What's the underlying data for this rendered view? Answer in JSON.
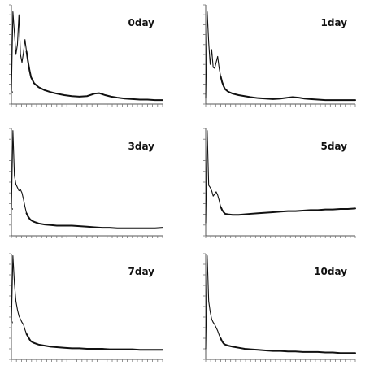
{
  "chart_data": [
    {
      "type": "line",
      "title": "0day",
      "xlabel": "",
      "ylabel": "",
      "xlim": [
        0,
        100
      ],
      "ylim": [
        0,
        100
      ],
      "series": [
        {
          "x": [
            0,
            1,
            2,
            3,
            4,
            5,
            6,
            7,
            8,
            9,
            10,
            11,
            12,
            13,
            15,
            18,
            22,
            26,
            30,
            35,
            40,
            45,
            50,
            55,
            58,
            62,
            66,
            70,
            75,
            80,
            85,
            90,
            95,
            100
          ],
          "y": [
            12,
            93,
            72,
            50,
            60,
            90,
            50,
            42,
            52,
            65,
            53,
            43,
            34,
            27,
            21,
            17,
            14,
            12,
            10.5,
            9,
            8,
            7.5,
            8,
            10.5,
            11,
            9,
            7.5,
            6.5,
            5.5,
            5,
            4.5,
            4.5,
            4,
            4
          ]
        }
      ]
    },
    {
      "type": "line",
      "title": "1day",
      "xlabel": "",
      "ylabel": "",
      "xlim": [
        0,
        100
      ],
      "ylim": [
        0,
        100
      ],
      "series": [
        {
          "x": [
            0,
            1,
            2,
            3,
            4,
            5,
            6,
            7,
            8,
            9,
            10,
            11,
            12,
            13,
            15,
            18,
            22,
            26,
            30,
            35,
            40,
            45,
            50,
            55,
            58,
            62,
            66,
            70,
            75,
            80,
            85,
            90,
            95,
            100
          ],
          "y": [
            6,
            93,
            62,
            40,
            55,
            37,
            36,
            42,
            48,
            36,
            28,
            22,
            18,
            15,
            12.5,
            10.5,
            9,
            8,
            7,
            6,
            5.5,
            5,
            5.5,
            6.5,
            7,
            6.5,
            5.5,
            5,
            4.5,
            4,
            4,
            4,
            4,
            4
          ]
        }
      ]
    },
    {
      "type": "line",
      "title": "3day",
      "xlabel": "",
      "ylabel": "",
      "xlim": [
        0,
        100
      ],
      "ylim": [
        0,
        100
      ],
      "series": [
        {
          "x": [
            0,
            1,
            2,
            3,
            4,
            5,
            6,
            7,
            8,
            9,
            10,
            11,
            12,
            13,
            15,
            18,
            22,
            26,
            30,
            35,
            40,
            45,
            50,
            55,
            60,
            65,
            70,
            75,
            80,
            85,
            90,
            95,
            100
          ],
          "y": [
            25,
            98,
            56,
            48,
            45,
            42,
            43,
            40,
            34,
            27,
            21,
            18,
            16,
            14.5,
            13,
            11.5,
            10.5,
            10,
            9.5,
            9.5,
            9.5,
            9,
            8.5,
            8,
            7.5,
            7.5,
            7,
            7,
            7,
            7,
            7,
            7,
            7.5
          ]
        }
      ]
    },
    {
      "type": "line",
      "title": "5day",
      "xlabel": "",
      "ylabel": "",
      "xlim": [
        0,
        100
      ],
      "ylim": [
        0,
        100
      ],
      "series": [
        {
          "x": [
            0,
            1,
            2,
            3,
            4,
            5,
            6,
            7,
            8,
            9,
            10,
            11,
            12,
            13,
            15,
            18,
            22,
            26,
            30,
            35,
            40,
            45,
            50,
            55,
            60,
            65,
            70,
            75,
            80,
            85,
            90,
            95,
            100
          ],
          "y": [
            12,
            98,
            47,
            45,
            42,
            37,
            39,
            41,
            38,
            33,
            27,
            24,
            22,
            20.5,
            20,
            19.5,
            19.5,
            20,
            20.5,
            21,
            21.5,
            22,
            22.5,
            23,
            23,
            23.5,
            24,
            24,
            24.5,
            24.5,
            25,
            25,
            25.5
          ]
        }
      ]
    },
    {
      "type": "line",
      "title": "7day",
      "xlabel": "",
      "ylabel": "",
      "xlim": [
        0,
        100
      ],
      "ylim": [
        0,
        100
      ],
      "series": [
        {
          "x": [
            0,
            1,
            2,
            3,
            4,
            5,
            6,
            7,
            8,
            9,
            10,
            11,
            12,
            13,
            15,
            18,
            22,
            26,
            30,
            35,
            40,
            45,
            50,
            55,
            60,
            65,
            70,
            75,
            80,
            85,
            90,
            95,
            100
          ],
          "y": [
            35,
            98,
            72,
            55,
            47,
            41,
            38,
            35,
            33,
            28,
            24,
            21.5,
            19,
            17,
            15.5,
            14,
            13,
            12,
            11.5,
            11,
            10.5,
            10.5,
            10,
            10,
            10,
            9.5,
            9.5,
            9.5,
            9.5,
            9,
            9,
            9,
            9
          ]
        }
      ]
    },
    {
      "type": "line",
      "title": "10day",
      "xlabel": "",
      "ylabel": "",
      "xlim": [
        0,
        100
      ],
      "ylim": [
        0,
        100
      ],
      "series": [
        {
          "x": [
            0,
            1,
            2,
            3,
            4,
            5,
            6,
            7,
            8,
            9,
            10,
            11,
            12,
            13,
            15,
            18,
            22,
            26,
            30,
            35,
            40,
            45,
            50,
            55,
            60,
            65,
            70,
            75,
            80,
            85,
            90,
            95,
            100
          ],
          "y": [
            10,
            98,
            55,
            45,
            38,
            35,
            33,
            30,
            27,
            23,
            20,
            17,
            15,
            14,
            13,
            12,
            11,
            10,
            9.5,
            9,
            8.5,
            8,
            8,
            7.5,
            7.5,
            7,
            7,
            7,
            6.5,
            6.5,
            6,
            6,
            6
          ]
        }
      ]
    }
  ]
}
